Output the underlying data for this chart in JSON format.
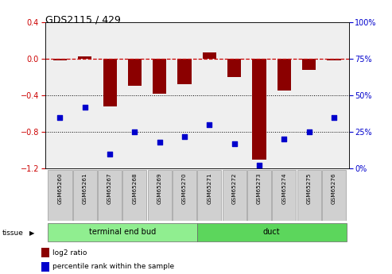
{
  "title": "GDS2115 / 429",
  "samples": [
    "GSM65260",
    "GSM65261",
    "GSM65267",
    "GSM65268",
    "GSM65269",
    "GSM65270",
    "GSM65271",
    "GSM65272",
    "GSM65273",
    "GSM65274",
    "GSM65275",
    "GSM65276"
  ],
  "log2_ratio": [
    -0.02,
    0.02,
    -0.52,
    -0.3,
    -0.38,
    -0.28,
    0.07,
    -0.2,
    -1.1,
    -0.35,
    -0.12,
    -0.02
  ],
  "percentile_rank": [
    35,
    42,
    10,
    25,
    18,
    22,
    30,
    17,
    2,
    20,
    25,
    35
  ],
  "tissue_groups": [
    {
      "label": "terminal end bud",
      "start": 0,
      "end": 6,
      "color": "#90EE90"
    },
    {
      "label": "duct",
      "start": 6,
      "end": 12,
      "color": "#5CD65C"
    }
  ],
  "ylim_left": [
    -1.2,
    0.4
  ],
  "ylim_right": [
    0,
    100
  ],
  "bar_color": "#8B0000",
  "scatter_color": "#0000CC",
  "hline_color": "#CC0000",
  "dot_line_color": "black",
  "plot_bg": "#EFEFEF",
  "label_box_color": "#D0D0D0",
  "left_yticks": [
    -1.2,
    -0.8,
    -0.4,
    0.0,
    0.4
  ],
  "right_yticks": [
    0,
    25,
    50,
    75,
    100
  ],
  "right_yticklabels": [
    "0%",
    "25%",
    "50%",
    "75%",
    "100%"
  ],
  "fig_width": 4.93,
  "fig_height": 3.45,
  "dpi": 100
}
